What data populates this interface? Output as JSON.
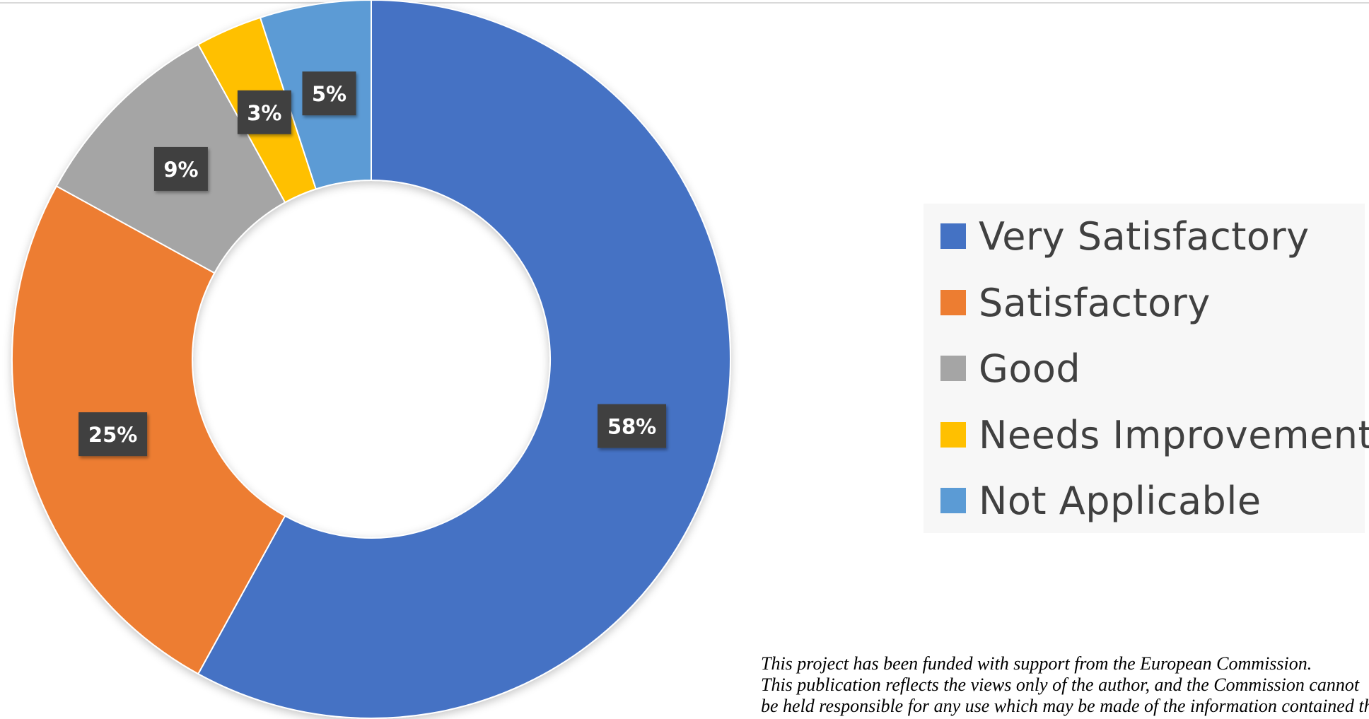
{
  "chart_data": {
    "type": "pie",
    "variant": "donut",
    "title": "",
    "categories": [
      "Very Satisfactory",
      "Satisfactory",
      "Good",
      "Needs Improvement",
      "Not Applicable"
    ],
    "values": [
      58,
      25,
      9,
      3,
      5
    ],
    "labels": [
      "58%",
      "25%",
      "9%",
      "3%",
      "5%"
    ],
    "unit": "%",
    "colors": [
      "#4472C4",
      "#ED7D31",
      "#A5A5A5",
      "#FFC000",
      "#5B9BD5"
    ],
    "legend_position": "right"
  },
  "footer": {
    "lines": [
      "This project has been funded with support from the European Commission.",
      "This publication reflects the views only of the author, and the Commission cannot",
      "be held responsible for any use which may be made of the information contained therein."
    ]
  }
}
